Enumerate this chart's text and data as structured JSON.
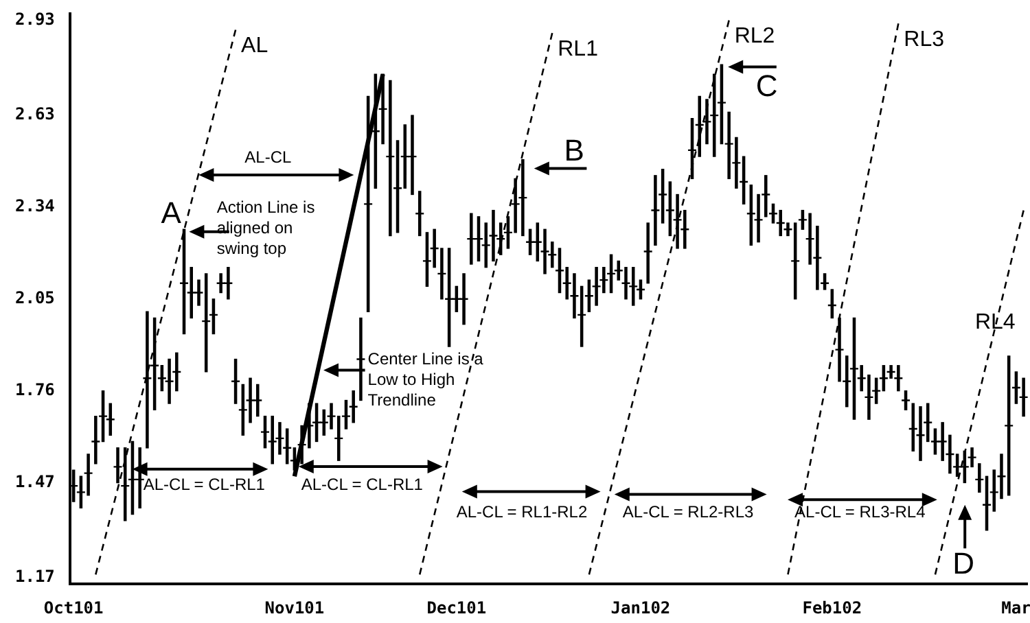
{
  "chart_data": {
    "type": "candlestick",
    "color": "#000000",
    "legend": false,
    "categories": [
      "Oct101",
      null,
      null,
      null,
      null,
      null,
      null,
      null,
      null,
      null,
      null,
      null,
      null,
      null,
      null,
      null,
      null,
      null,
      null,
      null,
      null,
      null,
      null,
      null,
      null,
      null,
      null,
      null,
      null,
      null,
      "Nov101",
      null,
      null,
      null,
      null,
      null,
      null,
      null,
      null,
      null,
      null,
      null,
      null,
      null,
      null,
      null,
      null,
      null,
      null,
      null,
      null,
      null,
      "Dec101",
      null,
      null,
      null,
      null,
      null,
      null,
      null,
      null,
      null,
      null,
      null,
      null,
      null,
      null,
      null,
      null,
      null,
      null,
      null,
      null,
      null,
      null,
      null,
      null,
      "Jan102",
      null,
      null,
      null,
      null,
      null,
      null,
      null,
      null,
      null,
      null,
      null,
      null,
      null,
      null,
      null,
      null,
      null,
      null,
      null,
      null,
      null,
      null,
      null,
      null,
      null,
      "Feb102",
      null,
      null,
      null,
      null,
      null,
      null,
      null,
      null,
      null,
      null,
      null,
      null,
      null,
      null,
      null,
      null,
      null,
      null,
      null,
      null,
      null,
      null,
      null,
      null,
      "Mar",
      null
    ],
    "ohlc": [
      [
        1.46,
        1.51,
        1.41,
        1.46
      ],
      [
        1.44,
        1.49,
        1.39,
        1.44
      ],
      [
        1.5,
        1.56,
        1.43,
        1.5
      ],
      [
        1.6,
        1.68,
        1.53,
        1.6
      ],
      [
        1.68,
        1.76,
        1.6,
        1.68
      ],
      [
        1.67,
        1.72,
        1.62,
        1.67
      ],
      [
        1.52,
        1.58,
        1.47,
        1.52
      ],
      [
        1.46,
        1.58,
        1.35,
        1.46
      ],
      [
        1.48,
        1.6,
        1.37,
        1.48
      ],
      [
        1.48,
        1.58,
        1.39,
        1.48
      ],
      [
        1.8,
        2.01,
        1.58,
        1.8
      ],
      [
        1.84,
        1.99,
        1.7,
        1.84
      ],
      [
        1.8,
        1.84,
        1.76,
        1.8
      ],
      [
        1.79,
        1.86,
        1.72,
        1.79
      ],
      [
        1.82,
        1.88,
        1.76,
        1.82
      ],
      [
        2.1,
        2.27,
        1.94,
        2.1
      ],
      [
        2.07,
        2.15,
        1.99,
        2.07
      ],
      [
        2.07,
        2.11,
        2.03,
        2.07
      ],
      [
        1.98,
        2.13,
        1.82,
        1.98
      ],
      [
        2.0,
        2.05,
        1.94,
        2.0
      ],
      [
        2.1,
        2.13,
        2.07,
        2.1
      ],
      [
        2.1,
        2.15,
        2.05,
        2.1
      ],
      [
        1.79,
        1.86,
        1.72,
        1.79
      ],
      [
        1.7,
        1.78,
        1.62,
        1.7
      ],
      [
        1.73,
        1.8,
        1.66,
        1.73
      ],
      [
        1.73,
        1.78,
        1.68,
        1.73
      ],
      [
        1.63,
        1.68,
        1.58,
        1.63
      ],
      [
        1.6,
        1.68,
        1.53,
        1.6
      ],
      [
        1.61,
        1.66,
        1.56,
        1.61
      ],
      [
        1.58,
        1.64,
        1.53,
        1.58
      ],
      [
        1.54,
        1.58,
        1.51,
        1.54
      ],
      [
        1.59,
        1.65,
        1.53,
        1.59
      ],
      [
        1.65,
        1.72,
        1.58,
        1.65
      ],
      [
        1.66,
        1.72,
        1.6,
        1.66
      ],
      [
        1.66,
        1.7,
        1.62,
        1.66
      ],
      [
        1.68,
        1.72,
        1.64,
        1.68
      ],
      [
        1.61,
        1.68,
        1.54,
        1.61
      ],
      [
        1.68,
        1.73,
        1.64,
        1.68
      ],
      [
        1.71,
        1.76,
        1.66,
        1.71
      ],
      [
        1.86,
        1.99,
        1.73,
        1.86
      ],
      [
        2.35,
        2.69,
        2.01,
        2.35
      ],
      [
        2.58,
        2.76,
        2.4,
        2.58
      ],
      [
        2.65,
        2.76,
        2.54,
        2.65
      ],
      [
        2.5,
        2.74,
        2.25,
        2.5
      ],
      [
        2.4,
        2.55,
        2.26,
        2.4
      ],
      [
        2.5,
        2.6,
        2.4,
        2.5
      ],
      [
        2.5,
        2.63,
        2.38,
        2.5
      ],
      [
        2.32,
        2.39,
        2.25,
        2.32
      ],
      [
        2.17,
        2.26,
        2.09,
        2.17
      ],
      [
        2.21,
        2.27,
        2.15,
        2.21
      ],
      [
        2.13,
        2.21,
        2.05,
        2.13
      ],
      [
        2.05,
        2.21,
        1.9,
        2.05
      ],
      [
        2.05,
        2.09,
        2.01,
        2.05
      ],
      [
        2.05,
        2.13,
        1.97,
        2.05
      ],
      [
        2.24,
        2.32,
        2.16,
        2.24
      ],
      [
        2.24,
        2.31,
        2.17,
        2.24
      ],
      [
        2.22,
        2.29,
        2.15,
        2.22
      ],
      [
        2.25,
        2.33,
        2.17,
        2.25
      ],
      [
        2.24,
        2.29,
        2.19,
        2.24
      ],
      [
        2.26,
        2.31,
        2.21,
        2.26
      ],
      [
        2.35,
        2.43,
        2.26,
        2.35
      ],
      [
        2.37,
        2.49,
        2.25,
        2.37
      ],
      [
        2.23,
        2.27,
        2.19,
        2.23
      ],
      [
        2.23,
        2.29,
        2.17,
        2.23
      ],
      [
        2.2,
        2.27,
        2.13,
        2.2
      ],
      [
        2.19,
        2.23,
        2.15,
        2.19
      ],
      [
        2.14,
        2.21,
        2.07,
        2.14
      ],
      [
        2.1,
        2.15,
        2.05,
        2.1
      ],
      [
        2.06,
        2.13,
        1.99,
        2.06
      ],
      [
        2.0,
        2.09,
        1.9,
        2.0
      ],
      [
        2.06,
        2.11,
        2.01,
        2.06
      ],
      [
        2.09,
        2.15,
        2.03,
        2.09
      ],
      [
        2.11,
        2.15,
        2.07,
        2.11
      ],
      [
        2.13,
        2.19,
        2.07,
        2.13
      ],
      [
        2.14,
        2.17,
        2.11,
        2.14
      ],
      [
        2.1,
        2.15,
        2.05,
        2.1
      ],
      [
        2.09,
        2.15,
        2.03,
        2.09
      ],
      [
        2.08,
        2.11,
        2.05,
        2.08
      ],
      [
        2.2,
        2.29,
        2.1,
        2.2
      ],
      [
        2.33,
        2.44,
        2.22,
        2.33
      ],
      [
        2.38,
        2.46,
        2.29,
        2.38
      ],
      [
        2.33,
        2.42,
        2.25,
        2.33
      ],
      [
        2.3,
        2.38,
        2.21,
        2.3
      ],
      [
        2.27,
        2.33,
        2.21,
        2.27
      ],
      [
        2.52,
        2.62,
        2.43,
        2.52
      ],
      [
        2.6,
        2.69,
        2.5,
        2.6
      ],
      [
        2.61,
        2.68,
        2.54,
        2.61
      ],
      [
        2.63,
        2.76,
        2.5,
        2.63
      ],
      [
        2.67,
        2.79,
        2.54,
        2.67
      ],
      [
        2.54,
        2.64,
        2.43,
        2.54
      ],
      [
        2.48,
        2.56,
        2.4,
        2.48
      ],
      [
        2.42,
        2.5,
        2.35,
        2.42
      ],
      [
        2.32,
        2.41,
        2.22,
        2.32
      ],
      [
        2.3,
        2.38,
        2.23,
        2.3
      ],
      [
        2.38,
        2.44,
        2.31,
        2.38
      ],
      [
        2.32,
        2.35,
        2.29,
        2.32
      ],
      [
        2.29,
        2.33,
        2.25,
        2.29
      ],
      [
        2.27,
        2.29,
        2.25,
        2.27
      ],
      [
        2.17,
        2.29,
        2.05,
        2.17
      ],
      [
        2.3,
        2.33,
        2.27,
        2.3
      ],
      [
        2.24,
        2.32,
        2.16,
        2.24
      ],
      [
        2.18,
        2.28,
        2.08,
        2.18
      ],
      [
        2.1,
        2.13,
        2.08,
        2.1
      ],
      [
        2.03,
        2.08,
        1.99,
        2.03
      ],
      [
        1.89,
        1.99,
        1.79,
        1.89
      ],
      [
        1.79,
        1.87,
        1.71,
        1.79
      ],
      [
        1.83,
        1.99,
        1.67,
        1.83
      ],
      [
        1.8,
        1.84,
        1.76,
        1.8
      ],
      [
        1.74,
        1.81,
        1.67,
        1.74
      ],
      [
        1.76,
        1.8,
        1.72,
        1.76
      ],
      [
        1.8,
        1.84,
        1.76,
        1.8
      ],
      [
        1.82,
        1.84,
        1.8,
        1.82
      ],
      [
        1.8,
        1.84,
        1.76,
        1.8
      ],
      [
        1.73,
        1.76,
        1.7,
        1.73
      ],
      [
        1.64,
        1.72,
        1.57,
        1.64
      ],
      [
        1.62,
        1.71,
        1.54,
        1.62
      ],
      [
        1.66,
        1.72,
        1.6,
        1.66
      ],
      [
        1.6,
        1.64,
        1.56,
        1.6
      ],
      [
        1.6,
        1.66,
        1.54,
        1.6
      ],
      [
        1.56,
        1.62,
        1.5,
        1.56
      ],
      [
        1.52,
        1.56,
        1.49,
        1.52
      ],
      [
        1.52,
        1.57,
        1.47,
        1.52
      ],
      [
        1.55,
        1.58,
        1.52,
        1.55
      ],
      [
        1.48,
        1.53,
        1.44,
        1.48
      ],
      [
        1.4,
        1.49,
        1.32,
        1.4
      ],
      [
        1.44,
        1.51,
        1.38,
        1.44
      ],
      [
        1.49,
        1.56,
        1.42,
        1.49
      ],
      [
        1.65,
        1.87,
        1.43,
        1.65
      ],
      [
        1.77,
        1.82,
        1.72,
        1.77
      ],
      [
        1.74,
        1.8,
        1.68,
        1.74
      ]
    ],
    "series": [
      {
        "name": "AL",
        "type": "line",
        "color": "#000000",
        "line_style": "dashed",
        "values": [
          null,
          null,
          null,
          1.18,
          null,
          null,
          null,
          null,
          null,
          null,
          null,
          null,
          null,
          null,
          null,
          null,
          null,
          null,
          null,
          null,
          null,
          null,
          2.9,
          null,
          null,
          null,
          null,
          null,
          null,
          null,
          null,
          null,
          null,
          null,
          null,
          null,
          null,
          null,
          null,
          null,
          null,
          null,
          null,
          null,
          null,
          null,
          null,
          null,
          null,
          null,
          null,
          null,
          null,
          null,
          null,
          null,
          null,
          null,
          null,
          null,
          null,
          null,
          null,
          null,
          null,
          null,
          null,
          null,
          null,
          null,
          null,
          null,
          null,
          null,
          null,
          null,
          null,
          null,
          null,
          null,
          null,
          null,
          null,
          null,
          null,
          null,
          null,
          null,
          null,
          null,
          null,
          null,
          null,
          null,
          null,
          null,
          null,
          null,
          null,
          null,
          null,
          null,
          null,
          null,
          null,
          null,
          null,
          null,
          null,
          null,
          null,
          null,
          null,
          null,
          null,
          null,
          null,
          null,
          null,
          null,
          null,
          null,
          null,
          null,
          null,
          null,
          null,
          null,
          null,
          null
        ]
      },
      {
        "type": "line",
        "color": "#000000",
        "line_style": "solid",
        "values": [
          null,
          null,
          null,
          null,
          null,
          null,
          null,
          null,
          null,
          null,
          null,
          null,
          null,
          null,
          null,
          null,
          null,
          null,
          null,
          null,
          null,
          null,
          null,
          null,
          null,
          null,
          null,
          null,
          null,
          null,
          1.49,
          null,
          null,
          null,
          null,
          null,
          null,
          null,
          null,
          null,
          null,
          null,
          2.76,
          null,
          null,
          null,
          null,
          null,
          null,
          null,
          null,
          null,
          null,
          null,
          null,
          null,
          null,
          null,
          null,
          null,
          null,
          null,
          null,
          null,
          null,
          null,
          null,
          null,
          null,
          null,
          null,
          null,
          null,
          null,
          null,
          null,
          null,
          null,
          null,
          null,
          null,
          null,
          null,
          null,
          null,
          null,
          null,
          null,
          null,
          null,
          null,
          null,
          null,
          null,
          null,
          null,
          null,
          null,
          null,
          null,
          null,
          null,
          null,
          null,
          null,
          null,
          null,
          null,
          null,
          null,
          null,
          null,
          null,
          null,
          null,
          null,
          null,
          null,
          null,
          null,
          null,
          null,
          null,
          null,
          null,
          null,
          null,
          null,
          null,
          null
        ]
      },
      {
        "name": "RL1",
        "type": "line",
        "color": "#000000",
        "line_style": "dashed",
        "values": [
          null,
          null,
          null,
          null,
          null,
          null,
          null,
          null,
          null,
          null,
          null,
          null,
          null,
          null,
          null,
          null,
          null,
          null,
          null,
          null,
          null,
          null,
          null,
          null,
          null,
          null,
          null,
          null,
          null,
          null,
          null,
          null,
          null,
          null,
          null,
          null,
          null,
          null,
          null,
          null,
          null,
          null,
          null,
          null,
          null,
          null,
          null,
          1.18,
          null,
          null,
          null,
          null,
          null,
          null,
          null,
          null,
          null,
          null,
          null,
          null,
          null,
          null,
          null,
          null,
          null,
          2.89,
          null,
          null,
          null,
          null,
          null,
          null,
          null,
          null,
          null,
          null,
          null,
          null,
          null,
          null,
          null,
          null,
          null,
          null,
          null,
          null,
          null,
          null,
          null,
          null,
          null,
          null,
          null,
          null,
          null,
          null,
          null,
          null,
          null,
          null,
          null,
          null,
          null,
          null,
          null,
          null,
          null,
          null,
          null,
          null,
          null,
          null,
          null,
          null,
          null,
          null,
          null,
          null,
          null,
          null,
          null,
          null,
          null,
          null,
          null,
          null,
          null,
          null,
          null,
          null
        ]
      },
      {
        "name": "RL2",
        "type": "line",
        "color": "#000000",
        "line_style": "dashed",
        "values": [
          null,
          null,
          null,
          null,
          null,
          null,
          null,
          null,
          null,
          null,
          null,
          null,
          null,
          null,
          null,
          null,
          null,
          null,
          null,
          null,
          null,
          null,
          null,
          null,
          null,
          null,
          null,
          null,
          null,
          null,
          null,
          null,
          null,
          null,
          null,
          null,
          null,
          null,
          null,
          null,
          null,
          null,
          null,
          null,
          null,
          null,
          null,
          null,
          null,
          null,
          null,
          null,
          null,
          null,
          null,
          null,
          null,
          null,
          null,
          null,
          null,
          null,
          null,
          null,
          null,
          null,
          null,
          null,
          null,
          null,
          1.18,
          null,
          null,
          null,
          null,
          null,
          null,
          null,
          null,
          null,
          null,
          null,
          null,
          null,
          null,
          null,
          null,
          null,
          null,
          2.93,
          null,
          null,
          null,
          null,
          null,
          null,
          null,
          null,
          null,
          null,
          null,
          null,
          null,
          null,
          null,
          null,
          null,
          null,
          null,
          null,
          null,
          null,
          null,
          null,
          null,
          null,
          null,
          null,
          null,
          null,
          null,
          null,
          null,
          null,
          null,
          null,
          null,
          null,
          null,
          null
        ]
      },
      {
        "name": "RL3",
        "type": "line",
        "color": "#000000",
        "line_style": "dashed",
        "values": [
          null,
          null,
          null,
          null,
          null,
          null,
          null,
          null,
          null,
          null,
          null,
          null,
          null,
          null,
          null,
          null,
          null,
          null,
          null,
          null,
          null,
          null,
          null,
          null,
          null,
          null,
          null,
          null,
          null,
          null,
          null,
          null,
          null,
          null,
          null,
          null,
          null,
          null,
          null,
          null,
          null,
          null,
          null,
          null,
          null,
          null,
          null,
          null,
          null,
          null,
          null,
          null,
          null,
          null,
          null,
          null,
          null,
          null,
          null,
          null,
          null,
          null,
          null,
          null,
          null,
          null,
          null,
          null,
          null,
          null,
          null,
          null,
          null,
          null,
          null,
          null,
          null,
          null,
          null,
          null,
          null,
          null,
          null,
          null,
          null,
          null,
          null,
          null,
          null,
          null,
          null,
          null,
          null,
          null,
          null,
          null,
          null,
          1.18,
          null,
          null,
          null,
          null,
          null,
          null,
          null,
          null,
          null,
          null,
          null,
          null,
          null,
          null,
          2.92,
          null,
          null,
          null,
          null,
          null,
          null,
          null,
          null,
          null,
          null,
          null,
          null,
          null,
          null,
          null,
          null,
          null
        ]
      },
      {
        "name": "RL4",
        "type": "line",
        "color": "#000000",
        "line_style": "dashed",
        "values": [
          null,
          null,
          null,
          null,
          null,
          null,
          null,
          null,
          null,
          null,
          null,
          null,
          null,
          null,
          null,
          null,
          null,
          null,
          null,
          null,
          null,
          null,
          null,
          null,
          null,
          null,
          null,
          null,
          null,
          null,
          null,
          null,
          null,
          null,
          null,
          null,
          null,
          null,
          null,
          null,
          null,
          null,
          null,
          null,
          null,
          null,
          null,
          null,
          null,
          null,
          null,
          null,
          null,
          null,
          null,
          null,
          null,
          null,
          null,
          null,
          null,
          null,
          null,
          null,
          null,
          null,
          null,
          null,
          null,
          null,
          null,
          null,
          null,
          null,
          null,
          null,
          null,
          null,
          null,
          null,
          null,
          null,
          null,
          null,
          null,
          null,
          null,
          null,
          null,
          null,
          null,
          null,
          null,
          null,
          null,
          null,
          null,
          null,
          null,
          null,
          null,
          null,
          null,
          null,
          null,
          null,
          null,
          null,
          null,
          null,
          null,
          null,
          null,
          null,
          null,
          null,
          null,
          1.18,
          null,
          null,
          null,
          null,
          null,
          null,
          null,
          null,
          null,
          null,
          null,
          2.33
        ]
      }
    ],
    "ylim": [
      1.15,
      2.95
    ],
    "yticks": [
      1.17,
      1.47,
      1.76,
      2.05,
      2.34,
      2.63,
      2.93
    ],
    "annotations": [
      "A",
      "AL-CL",
      "Action Line is aligned on swing top",
      "Center Line is a Low to High Trendline",
      "AL-CL = CL-RL1",
      "AL-CL = CL-RL1",
      "B",
      "AL-CL = RL1-RL2",
      "AL-CL = RL2-RL3",
      "C",
      "AL-CL = RL3-RL4",
      "D"
    ]
  }
}
